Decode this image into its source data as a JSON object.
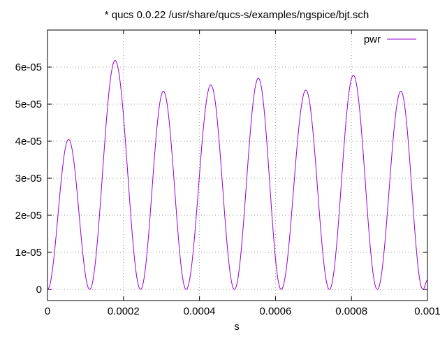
{
  "chart_data": {
    "type": "line",
    "title": "* qucs 0.0.22 /usr/share/qucs-s/examples/ngspice/bjt.sch",
    "xlabel": "s",
    "ylabel": "",
    "xlim": [
      0,
      0.001
    ],
    "ylim": [
      -3e-06,
      7e-05
    ],
    "grid": true,
    "legend_position": "top-right",
    "x_ticks": [
      0,
      0.0002,
      0.0004,
      0.0006,
      0.0008,
      0.001
    ],
    "x_tick_labels": [
      "0",
      "0.0002",
      "0.0004",
      "0.0006",
      "0.0008",
      "0.001"
    ],
    "y_ticks": [
      0,
      1e-05,
      2e-05,
      3e-05,
      4e-05,
      5e-05,
      6e-05
    ],
    "y_tick_labels": [
      "0",
      "1e-05",
      "2e-05",
      "3e-05",
      "4e-05",
      "5e-05",
      "6e-05"
    ],
    "series": [
      {
        "name": "pwr",
        "color": "#9400d3",
        "x": [
          0,
          5.55e-05,
          0.000111,
          0.000178,
          0.000245,
          0.000305,
          0.000365,
          0.00043,
          0.000492,
          0.000555,
          0.000615,
          0.00068,
          0.000742,
          0.000805,
          0.000868,
          0.00093,
          0.000988,
          0.001
        ],
        "y": [
          0,
          4.05e-05,
          0,
          6.18e-05,
          0,
          5.35e-05,
          0,
          5.52e-05,
          0,
          5.7e-05,
          0,
          5.38e-05,
          0,
          5.78e-05,
          0,
          5.35e-05,
          0,
          2.5e-06
        ]
      }
    ]
  }
}
